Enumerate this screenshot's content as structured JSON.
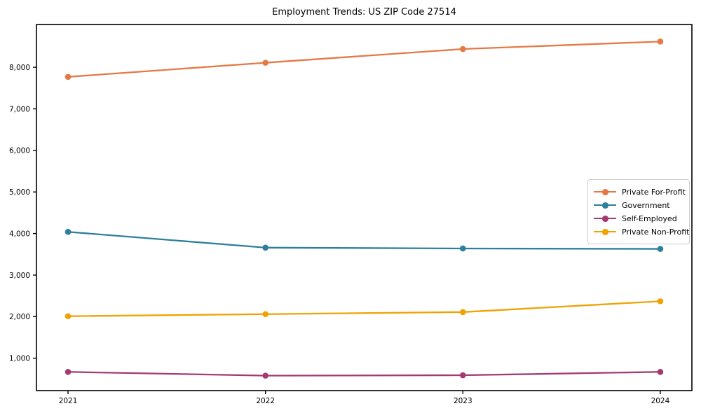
{
  "chart_data": {
    "type": "line",
    "title": "Employment Trends: US ZIP Code 27514",
    "xlabel": "",
    "ylabel": "",
    "x": [
      2021,
      2022,
      2023,
      2024
    ],
    "x_tick_labels": [
      "2021",
      "2022",
      "2023",
      "2024"
    ],
    "yticks": [
      1000,
      2000,
      3000,
      4000,
      5000,
      6000,
      7000,
      8000
    ],
    "ytick_labels": [
      "1,000",
      "2,000",
      "3,000",
      "4,000",
      "5,000",
      "6,000",
      "7,000",
      "8,000"
    ],
    "xlim": [
      2020.84,
      2024.16
    ],
    "ylim": [
      220,
      9030
    ],
    "grid": false,
    "legend_position": "center-right",
    "axis_color": "#000000",
    "series": [
      {
        "name": "Private For-Profit",
        "color": "#e57946",
        "values": [
          7770,
          8110,
          8440,
          8620
        ]
      },
      {
        "name": "Government",
        "color": "#2d7f9d",
        "values": [
          4040,
          3660,
          3640,
          3630
        ]
      },
      {
        "name": "Self-Employed",
        "color": "#a43a70",
        "values": [
          670,
          580,
          590,
          670
        ]
      },
      {
        "name": "Private Non-Profit",
        "color": "#f0a202",
        "values": [
          2010,
          2060,
          2110,
          2370
        ]
      }
    ]
  }
}
